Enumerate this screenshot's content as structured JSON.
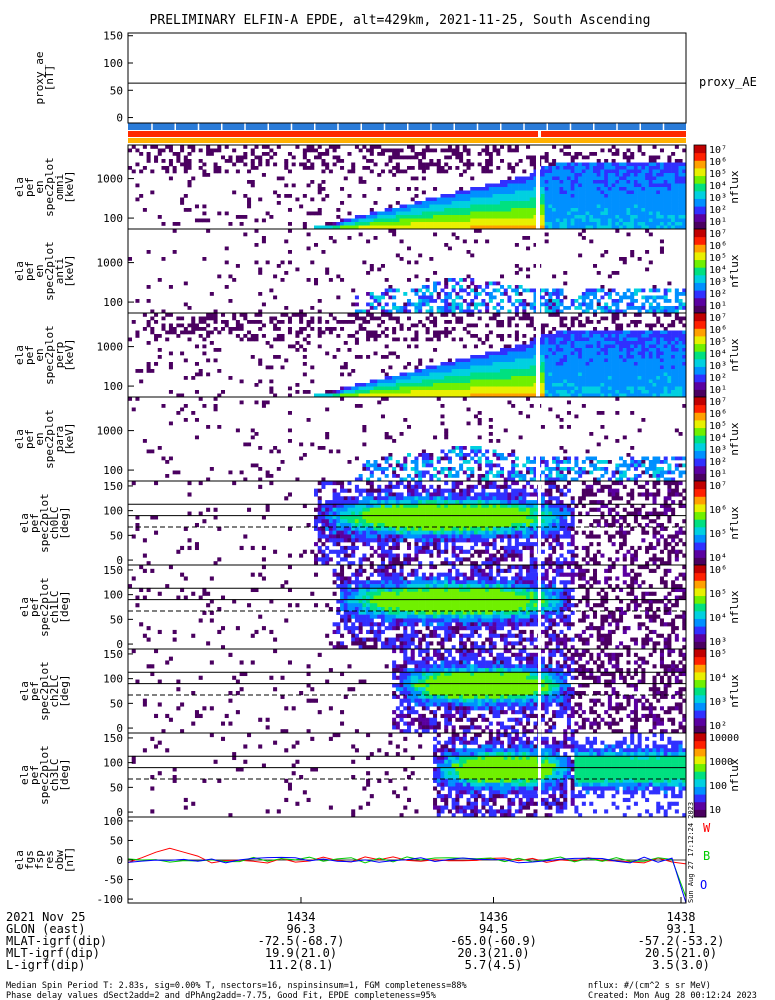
{
  "title": "PRELIMINARY ELFIN-A EPDE, alt=429km, 2021-11-25, South Ascending",
  "colors": {
    "flag_blue": "#2a7bd8",
    "flag_red": "#ff2a00",
    "flag_orange": "#ffb000",
    "series_W": "#ff0000",
    "series_B": "#00cc00",
    "series_O": "#0000ff"
  },
  "colorscale": [
    "#4a0060",
    "#5a00a0",
    "#3030ff",
    "#0090ff",
    "#00d0e0",
    "#00e080",
    "#70f000",
    "#e8f000",
    "#ffa000",
    "#ff2000",
    "#c00000"
  ],
  "stamp": "Sun Aug 27 17:12:24 2023",
  "chart_data": [
    {
      "type": "line",
      "ylabel": "proxy_ae [nT]",
      "ylim": [
        -10,
        155
      ],
      "yticks": [
        "150",
        "100",
        "50",
        "0"
      ],
      "series": [
        {
          "name": "proxy_AE",
          "values": [
            63,
            63
          ]
        }
      ]
    },
    {
      "type": "heatmap",
      "ylabel": "ela pef en spec2plot omni [keV]",
      "scale": "log",
      "yticks": [
        "1000",
        "100"
      ],
      "colorbar": {
        "label": "nflux",
        "ticks": [
          "10⁷",
          "10⁶",
          "10⁵",
          "10⁴",
          "10³",
          "10²",
          "10¹"
        ]
      }
    },
    {
      "type": "heatmap",
      "ylabel": "ela pef en spec2plot anti [keV]",
      "scale": "log",
      "yticks": [
        "1000",
        "100"
      ],
      "colorbar": {
        "label": "nflux",
        "ticks": [
          "10⁷",
          "10⁶",
          "10⁵",
          "10⁴",
          "10³",
          "10²",
          "10¹"
        ]
      }
    },
    {
      "type": "heatmap",
      "ylabel": "ela pef en spec2plot perp [keV]",
      "scale": "log",
      "yticks": [
        "1000",
        "100"
      ],
      "colorbar": {
        "label": "nflux",
        "ticks": [
          "10⁷",
          "10⁶",
          "10⁵",
          "10⁴",
          "10³",
          "10²",
          "10¹"
        ]
      }
    },
    {
      "type": "heatmap",
      "ylabel": "ela pef en spec2plot para [keV]",
      "scale": "log",
      "yticks": [
        "1000",
        "100"
      ],
      "colorbar": {
        "label": "nflux",
        "ticks": [
          "10⁷",
          "10⁶",
          "10⁵",
          "10⁴",
          "10³",
          "10²",
          "10¹"
        ]
      }
    },
    {
      "type": "heatmap",
      "ylabel": "ela pef spec2plot ch0LC [deg]",
      "yticks": [
        "150",
        "100",
        "50",
        "0"
      ],
      "colorbar": {
        "label": "nflux",
        "ticks": [
          "10⁷",
          "10⁶",
          "10⁵",
          "10⁴"
        ]
      }
    },
    {
      "type": "heatmap",
      "ylabel": "ela pef spec2plot ch1LC [deg]",
      "yticks": [
        "150",
        "100",
        "50",
        "0"
      ],
      "colorbar": {
        "label": "nflux",
        "ticks": [
          "10⁶",
          "10⁵",
          "10⁴",
          "10³"
        ]
      }
    },
    {
      "type": "heatmap",
      "ylabel": "ela pef spec2plot ch2LC [deg]",
      "yticks": [
        "150",
        "100",
        "50",
        "0"
      ],
      "colorbar": {
        "label": "nflux",
        "ticks": [
          "10⁵",
          "10⁴",
          "10³",
          "10²"
        ]
      }
    },
    {
      "type": "heatmap",
      "ylabel": "ela pef spec2plot ch3LC [deg]",
      "yticks": [
        "150",
        "100",
        "50",
        "0"
      ],
      "colorbar": {
        "label": "nflux",
        "ticks": [
          "10000",
          "1000",
          "100",
          "10"
        ]
      }
    },
    {
      "type": "line",
      "ylabel": "ela fgs fsp res obw [nT]",
      "ylim": [
        -110,
        110
      ],
      "yticks": [
        "100",
        "50",
        "0",
        "-50",
        "-100"
      ],
      "legend": [
        "W",
        "B",
        "O"
      ]
    }
  ],
  "footer": {
    "date": "2021 Nov 25",
    "ticks": [
      "1434",
      "1436",
      "1438"
    ],
    "rows": [
      {
        "label": "GLON (east)",
        "values": [
          "96.3",
          "94.5",
          "93.1"
        ]
      },
      {
        "label": "MLAT-igrf(dip)",
        "values": [
          "-72.5(-68.7)",
          "-65.0(-60.9)",
          "-57.2(-53.2)"
        ]
      },
      {
        "label": "MLT-igrf(dip)",
        "values": [
          "19.9(21.0)",
          "20.3(21.0)",
          "20.5(21.0)"
        ]
      },
      {
        "label": "L-igrf(dip)",
        "values": [
          "11.2(8.1)",
          "5.7(4.5)",
          "3.5(3.0)"
        ]
      }
    ],
    "note1": "Median Spin Period T: 2.83s, sig=0.00% T, nsectors=16, nspinsinsum=1, FGM completeness=88%",
    "note2": "Phase delay values dSect2add=2 and dPhAng2add=-7.75, Good Fit, EPDE completeness=95%",
    "units": "nflux: #/(cm^2 s sr MeV)",
    "created": "Created: Mon Aug 28 00:12:24 2023"
  }
}
